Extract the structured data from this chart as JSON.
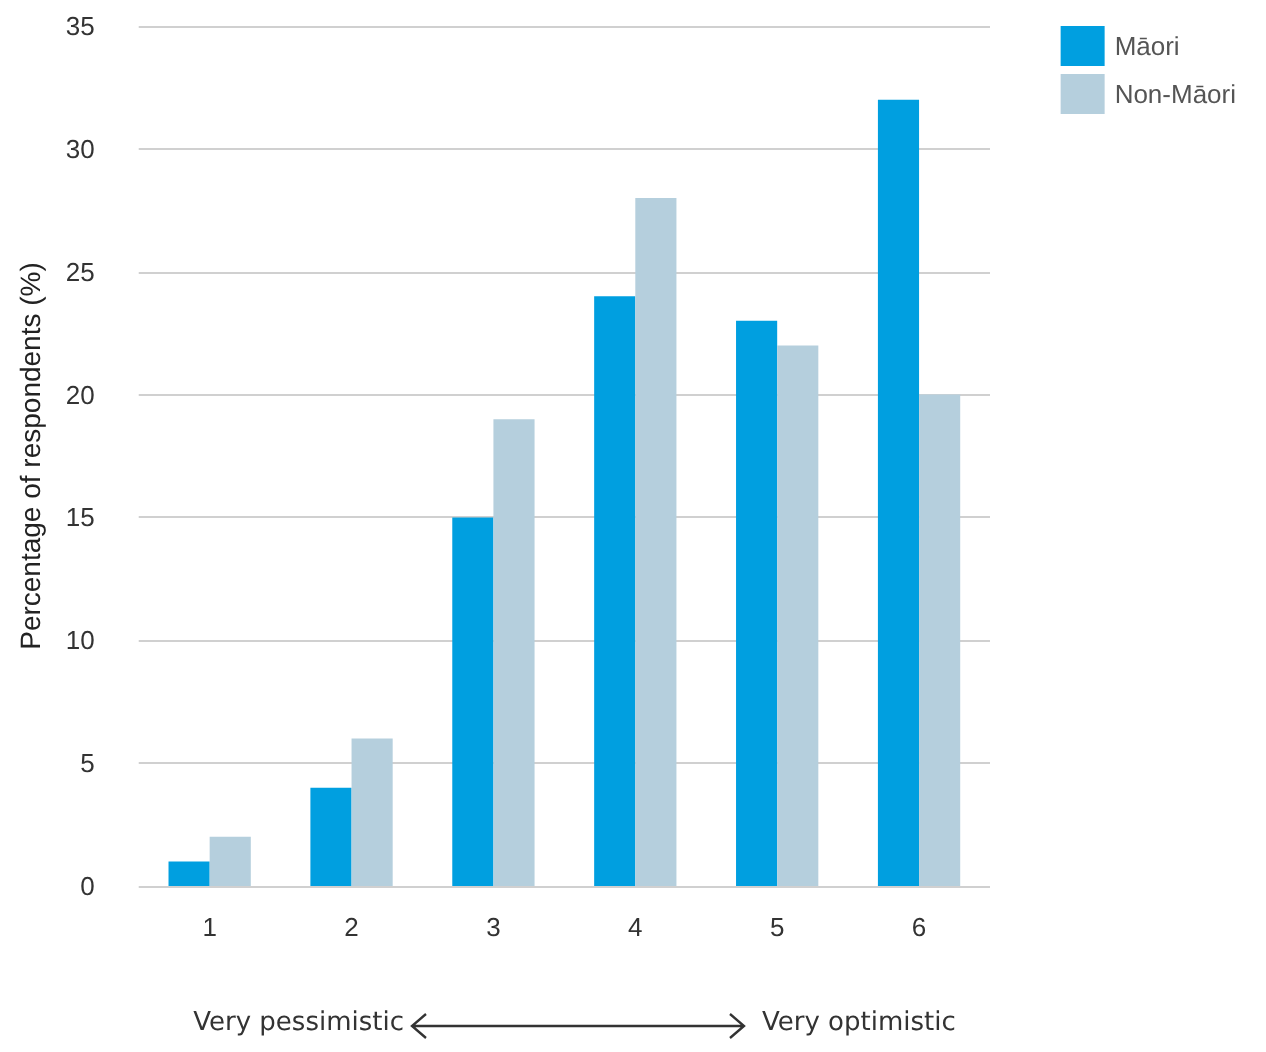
{
  "chart_data": {
    "type": "bar",
    "ylabel": "Percentage of respondents (%)",
    "categories": [
      "1",
      "2",
      "3",
      "4",
      "5",
      "6"
    ],
    "series": [
      {
        "name": "Māori",
        "color": "#009fe0",
        "values": [
          1,
          4,
          15,
          24,
          23,
          32
        ]
      },
      {
        "name": "Non-Māori",
        "color": "#b5cfdd",
        "values": [
          2,
          6,
          19,
          28,
          22,
          20
        ]
      }
    ],
    "ylim": [
      0,
      35
    ],
    "yticks": [
      0,
      5,
      10,
      15,
      20,
      25,
      30,
      35
    ],
    "grid": "y",
    "legend": "top right",
    "annotations": [
      "Very pessimistic",
      "Very optimistic"
    ]
  }
}
